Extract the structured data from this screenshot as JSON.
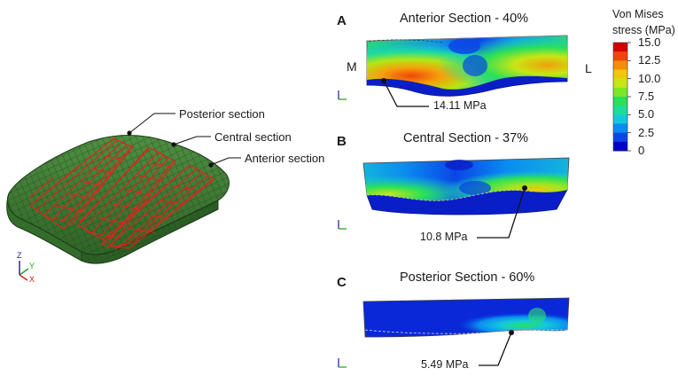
{
  "colors": {
    "mesh_green": "#3e7b34",
    "mesh_line": "#1d3a17",
    "fibre_red": "#e8201a",
    "leader": "#111111",
    "legend_scale": [
      "#0000c8",
      "#0a46e6",
      "#0a8cf0",
      "#14c8dc",
      "#1edc9c",
      "#28e05a",
      "#7ee628",
      "#c8e614",
      "#f0c80a",
      "#f58c0a",
      "#f0460a",
      "#d20000"
    ]
  },
  "mesh_labels": {
    "posterior": "Posterior section",
    "central": "Central section",
    "anterior": "Anterior section"
  },
  "axes_triad": {
    "z": "Z",
    "y": "Y",
    "x": "X"
  },
  "panels": [
    {
      "letter": "A",
      "title": "Anterior Section - 40%",
      "annotation": "14.11 MPa",
      "side_left": "M",
      "side_right": "L"
    },
    {
      "letter": "B",
      "title": "Central Section - 37%",
      "annotation": "10.8 MPa"
    },
    {
      "letter": "C",
      "title": "Posterior Section - 60%",
      "annotation": "5.49 MPa"
    }
  ],
  "legend": {
    "title_line1": "Von Mises",
    "title_line2": "stress (MPa)",
    "ticks": [
      "15.0",
      "12.5",
      "10.0",
      "7.5",
      "5.0",
      "2.5",
      "0"
    ]
  }
}
